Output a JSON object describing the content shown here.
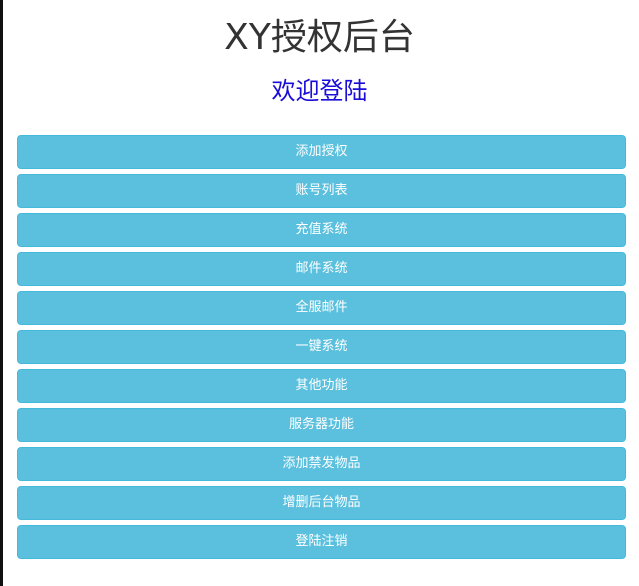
{
  "header": {
    "title": "XY授权后台",
    "subtitle": "欢迎登陆"
  },
  "menu": {
    "items": [
      {
        "label": "添加授权"
      },
      {
        "label": "账号列表"
      },
      {
        "label": "充值系统"
      },
      {
        "label": "邮件系统"
      },
      {
        "label": "全服邮件"
      },
      {
        "label": "一键系统"
      },
      {
        "label": "其他功能"
      },
      {
        "label": "服务器功能"
      },
      {
        "label": "添加禁发物品"
      },
      {
        "label": "增删后台物品"
      },
      {
        "label": "登陆注销"
      }
    ]
  },
  "colors": {
    "button": "#5bc0de",
    "subtitle": "#1a0dd8"
  }
}
